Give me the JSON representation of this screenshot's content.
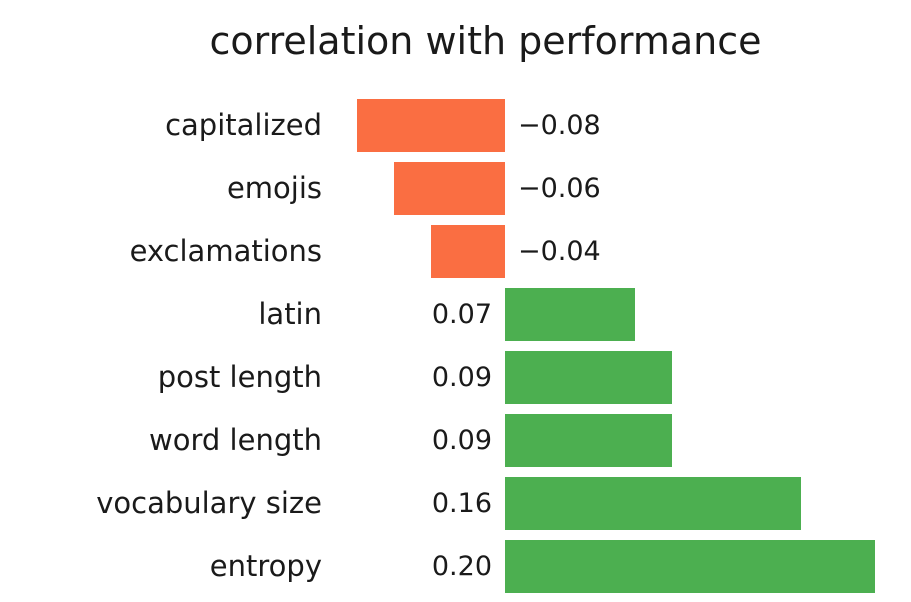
{
  "title": "correlation with performance",
  "colors": {
    "background": "#ffffff",
    "text": "#1a1a1a",
    "negative_bar": "#fa6e42",
    "positive_bar": "#4caf50"
  },
  "chart_data": {
    "type": "bar",
    "orientation": "horizontal",
    "title": "correlation with performance",
    "xlabel": "",
    "ylabel": "",
    "categories": [
      "capitalized",
      "emojis",
      "exclamations",
      "latin",
      "post length",
      "word length",
      "vocabulary size",
      "entropy"
    ],
    "values": [
      -0.08,
      -0.06,
      -0.04,
      0.07,
      0.09,
      0.09,
      0.16,
      0.2
    ],
    "value_labels": [
      "−0.08",
      "−0.06",
      "−0.04",
      "0.07",
      "0.09",
      "0.09",
      "0.16",
      "0.20"
    ],
    "xlim": [
      -0.115,
      0.22
    ],
    "grid": false,
    "legend": false,
    "axes_visible": false,
    "value_label_placement": "negative values right of bar, positive values left of bar"
  }
}
